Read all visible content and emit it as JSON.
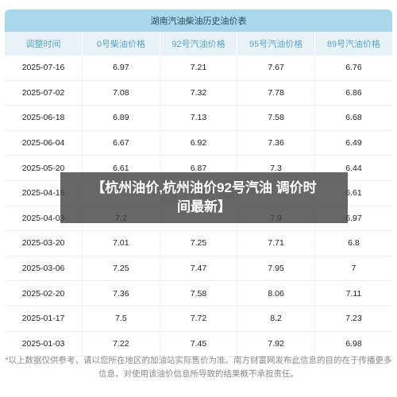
{
  "table": {
    "title": "湖南汽油柴油历史油价表",
    "headers": [
      "调整时间",
      "0号柴油价格",
      "92号汽油价格",
      "95号汽油价格",
      "89号汽油价格"
    ],
    "rows": [
      [
        "2025-07-16",
        "6.97",
        "7.21",
        "7.67",
        "6.76"
      ],
      [
        "2025-07-02",
        "7.08",
        "7.32",
        "7.78",
        "6.86"
      ],
      [
        "2025-06-18",
        "6.89",
        "7.13",
        "7.58",
        "6.68"
      ],
      [
        "2025-06-04",
        "6.67",
        "6.92",
        "7.36",
        "6.49"
      ],
      [
        "2025-05-20",
        "6.61",
        "6.87",
        "7.3",
        "6.44"
      ],
      [
        "2025-04-18",
        "",
        "",
        "",
        "6.61"
      ],
      [
        "2025-04-03",
        "7.2",
        "",
        "7.9",
        "6.97"
      ],
      [
        "2025-03-20",
        "7.01",
        "7.25",
        "7.71",
        "6.8"
      ],
      [
        "2025-03-06",
        "7.25",
        "7.47",
        "7.95",
        "7"
      ],
      [
        "2025-02-20",
        "7.36",
        "7.58",
        "8.06",
        "7.11"
      ],
      [
        "2025-01-17",
        "7.5",
        "7.72",
        "8.2",
        "7.23"
      ],
      [
        "2025-01-03",
        "7.22",
        "7.45",
        "7.92",
        "6.98"
      ]
    ]
  },
  "note": "*以上数据仅供参考，请以您所在地区的加油站实际售价为准。南方财富网发布此信息的目的在于传播更多信息，对使用该油价信息所导致的结果概不承担责任。",
  "watermark": "南方财富网",
  "overlay": {
    "line1": "【杭州油价,杭州油价92号汽油 调价时",
    "line2": "间最新】"
  }
}
